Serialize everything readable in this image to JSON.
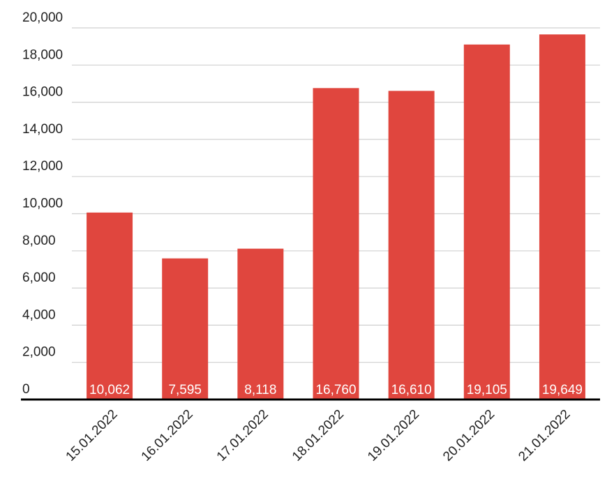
{
  "chart_data": {
    "type": "bar",
    "categories": [
      "15.01.2022",
      "16.01.2022",
      "17.01.2022",
      "18.01.2022",
      "19.01.2022",
      "20.01.2022",
      "21.01.2022"
    ],
    "values": [
      10062,
      7595,
      8118,
      16760,
      16610,
      19105,
      19649
    ],
    "value_labels": [
      "10,062",
      "7,595",
      "8,118",
      "16,760",
      "16,610",
      "19,105",
      "19,649"
    ],
    "color": "#e0463e",
    "ylim": [
      0,
      20000
    ],
    "yticks": [
      0,
      {
        "value": 2000,
        "label": "2,000"
      },
      {
        "value": 4000,
        "label": "4,000"
      },
      {
        "value": 6000,
        "label": "6,000"
      },
      {
        "value": 8000,
        "label": "8,000"
      },
      {
        "value": 10000,
        "label": "10,000"
      },
      {
        "value": 12000,
        "label": "12,000"
      },
      {
        "value": 14000,
        "label": "14,000"
      },
      {
        "value": 16000,
        "label": "16,000"
      },
      {
        "value": 18000,
        "label": "18,000"
      },
      {
        "value": 20000,
        "label": "20,000"
      }
    ],
    "grid": true
  }
}
